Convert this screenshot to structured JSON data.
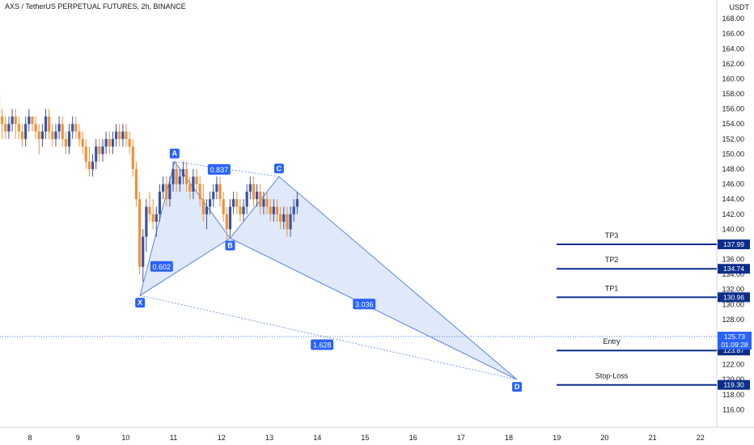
{
  "header": {
    "title": "AXS / TetherUS PERPETUAL FUTURES, 2h, BINANCE"
  },
  "chart_data": {
    "type": "candlestick",
    "currency_label": "USDT",
    "ylim": [
      115.5,
      168.5
    ],
    "y_ticks": [
      116,
      118,
      120,
      122,
      124,
      126,
      128,
      130,
      132,
      134,
      136,
      138,
      140,
      142,
      144,
      146,
      148,
      150,
      152,
      154,
      156,
      158,
      160,
      162,
      164,
      166,
      168
    ],
    "x_ticks": [
      {
        "label": "8",
        "t": 1.1
      },
      {
        "label": "9",
        "t": 2.1
      },
      {
        "label": "10",
        "t": 3.1
      },
      {
        "label": "11",
        "t": 4.1
      },
      {
        "label": "12",
        "t": 5.1
      },
      {
        "label": "13",
        "t": 6.1
      },
      {
        "label": "14",
        "t": 7.1
      },
      {
        "label": "15",
        "t": 8.1
      },
      {
        "label": "16",
        "t": 9.1
      },
      {
        "label": "17",
        "t": 10.1
      },
      {
        "label": "18",
        "t": 11.1
      },
      {
        "label": "19",
        "t": 12.1
      },
      {
        "label": "20",
        "t": 13.1
      },
      {
        "label": "21",
        "t": 14.1
      },
      {
        "label": "22",
        "t": 15.1
      }
    ],
    "colors": {
      "up": "#3a53a4",
      "down": "#f0913a",
      "pattern_fill": "#d6e2f7",
      "pattern_line": "#5b86e5",
      "level": "#0c2e8a",
      "point": "#2962ff"
    },
    "candles": [
      [
        0.04,
        158,
        160,
        155,
        156
      ],
      [
        0.1,
        156,
        160,
        155,
        159
      ],
      [
        0.17,
        159,
        162,
        158,
        160
      ],
      [
        0.24,
        160,
        163,
        159,
        161
      ],
      [
        0.31,
        161,
        165,
        160,
        163
      ],
      [
        0.38,
        163,
        164,
        157,
        158
      ],
      [
        0.45,
        158,
        159,
        154,
        155
      ],
      [
        0.52,
        155,
        156,
        152,
        154
      ],
      [
        0.59,
        154,
        155,
        152,
        153
      ],
      [
        0.66,
        153,
        155,
        152,
        154
      ],
      [
        0.73,
        154,
        156,
        153,
        155
      ],
      [
        0.8,
        155,
        156,
        152,
        154
      ],
      [
        0.87,
        154,
        155,
        152,
        153
      ],
      [
        0.94,
        153,
        154,
        151,
        152
      ],
      [
        1.01,
        152,
        155,
        151,
        154
      ],
      [
        1.08,
        154,
        156,
        153,
        155
      ],
      [
        1.15,
        155,
        155,
        153,
        154
      ],
      [
        1.22,
        154,
        155,
        152,
        153
      ],
      [
        1.29,
        153,
        154,
        150,
        152
      ],
      [
        1.36,
        152,
        154,
        151,
        153
      ],
      [
        1.43,
        153,
        156,
        152,
        155
      ],
      [
        1.5,
        155,
        156,
        152,
        153
      ],
      [
        1.57,
        153,
        154,
        151,
        152
      ],
      [
        1.64,
        152,
        154,
        151,
        153
      ],
      [
        1.71,
        153,
        155,
        152,
        154
      ],
      [
        1.78,
        154,
        155,
        151,
        152
      ],
      [
        1.85,
        152,
        153,
        150,
        151
      ],
      [
        1.92,
        151,
        154,
        150,
        153
      ],
      [
        1.99,
        153,
        155,
        152,
        154
      ],
      [
        2.06,
        154,
        155,
        152,
        153
      ],
      [
        2.13,
        153,
        154,
        151,
        152
      ],
      [
        2.2,
        152,
        153,
        150,
        151
      ],
      [
        2.27,
        151,
        152,
        148,
        149
      ],
      [
        2.34,
        149,
        151,
        147,
        148
      ],
      [
        2.41,
        148,
        150,
        147,
        149
      ],
      [
        2.48,
        149,
        152,
        148,
        151
      ],
      [
        2.55,
        151,
        152,
        149,
        150
      ],
      [
        2.62,
        150,
        152,
        149,
        151
      ],
      [
        2.69,
        151,
        153,
        150,
        152
      ],
      [
        2.76,
        152,
        153,
        150,
        151
      ],
      [
        2.83,
        151,
        153,
        150,
        152
      ],
      [
        2.9,
        152,
        154,
        151,
        153
      ],
      [
        2.97,
        153,
        154,
        151,
        152
      ],
      [
        3.04,
        152,
        154,
        151,
        153
      ],
      [
        3.11,
        153,
        154,
        151,
        152
      ],
      [
        3.18,
        152,
        153,
        150,
        151
      ],
      [
        3.25,
        151,
        152,
        147,
        148
      ],
      [
        3.32,
        148,
        149,
        143,
        144
      ],
      [
        3.39,
        144,
        145,
        134,
        135
      ],
      [
        3.46,
        135,
        140,
        133,
        139
      ],
      [
        3.53,
        139,
        144,
        137,
        143
      ],
      [
        3.6,
        143,
        145,
        141,
        142
      ],
      [
        3.67,
        142,
        144,
        140,
        141
      ],
      [
        3.74,
        141,
        143,
        139,
        142
      ],
      [
        3.81,
        142,
        146,
        141,
        145
      ],
      [
        3.88,
        145,
        147,
        144,
        146
      ],
      [
        3.95,
        146,
        147,
        143,
        144
      ],
      [
        4.02,
        144,
        147,
        143,
        146
      ],
      [
        4.09,
        146,
        149,
        145,
        148
      ],
      [
        4.16,
        148,
        149,
        145,
        146
      ],
      [
        4.23,
        146,
        148,
        145,
        147
      ],
      [
        4.3,
        147,
        149,
        146,
        148
      ],
      [
        4.37,
        148,
        149,
        145,
        146
      ],
      [
        4.44,
        146,
        147,
        144,
        145
      ],
      [
        4.51,
        145,
        148,
        144,
        147
      ],
      [
        4.58,
        147,
        148,
        145,
        146
      ],
      [
        4.65,
        146,
        147,
        143,
        144
      ],
      [
        4.72,
        144,
        146,
        141,
        142
      ],
      [
        4.79,
        142,
        144,
        140,
        143
      ],
      [
        4.86,
        143,
        145,
        142,
        144
      ],
      [
        4.93,
        144,
        146,
        143,
        145
      ],
      [
        5.0,
        145,
        147,
        144,
        146
      ],
      [
        5.07,
        146,
        147,
        143,
        144
      ],
      [
        5.14,
        144,
        145,
        141,
        142
      ],
      [
        5.21,
        142,
        143,
        138,
        140
      ],
      [
        5.28,
        140,
        144,
        139,
        143
      ],
      [
        5.35,
        143,
        145,
        142,
        144
      ],
      [
        5.42,
        144,
        145,
        142,
        143
      ],
      [
        5.49,
        143,
        144,
        141,
        142
      ],
      [
        5.56,
        142,
        144,
        141,
        143
      ],
      [
        5.63,
        143,
        146,
        142,
        145
      ],
      [
        5.7,
        145,
        147,
        144,
        146
      ],
      [
        5.77,
        146,
        147,
        143,
        144
      ],
      [
        5.84,
        144,
        146,
        143,
        145
      ],
      [
        5.91,
        145,
        146,
        142,
        143
      ],
      [
        5.98,
        143,
        145,
        142,
        144
      ],
      [
        6.05,
        144,
        145,
        142,
        143
      ],
      [
        6.12,
        143,
        144,
        141,
        142
      ],
      [
        6.19,
        142,
        144,
        141,
        143
      ],
      [
        6.26,
        143,
        144,
        141,
        142
      ],
      [
        6.33,
        142,
        143,
        140,
        141
      ],
      [
        6.4,
        141,
        143,
        140,
        142
      ],
      [
        6.47,
        142,
        143,
        139,
        140
      ],
      [
        6.54,
        140,
        143,
        139,
        142
      ],
      [
        6.61,
        142,
        144,
        141,
        143
      ],
      [
        6.68,
        143,
        145,
        142,
        144
      ]
    ],
    "pattern": {
      "points": [
        {
          "label": "X",
          "t": 3.4,
          "v": 131.2
        },
        {
          "label": "A",
          "t": 4.12,
          "v": 149.0
        },
        {
          "label": "B",
          "t": 5.28,
          "v": 138.8
        },
        {
          "label": "C",
          "t": 6.3,
          "v": 147.0
        },
        {
          "label": "D",
          "t": 11.27,
          "v": 120.0
        }
      ],
      "ratios": [
        {
          "label": "0.837",
          "t": 5.05,
          "v": 147.9
        },
        {
          "label": "0.602",
          "t": 3.85,
          "v": 135.0
        },
        {
          "label": "3.036",
          "t": 8.08,
          "v": 130.0
        },
        {
          "label": "1.628",
          "t": 7.2,
          "v": 124.6
        }
      ]
    },
    "levels": [
      {
        "label": "TP3",
        "value": 137.99,
        "tag": "137.99"
      },
      {
        "label": "TP2",
        "value": 134.74,
        "tag": "134.74"
      },
      {
        "label": "TP1",
        "value": 130.96,
        "tag": "130.96"
      },
      {
        "label": "Entry",
        "value": 123.87,
        "tag": "123.87"
      },
      {
        "label": "Stop-Loss",
        "value": 119.3,
        "tag": "119.30"
      }
    ],
    "current_price": {
      "value": 125.73,
      "label": "125.73",
      "countdown": "01:09:28"
    }
  }
}
